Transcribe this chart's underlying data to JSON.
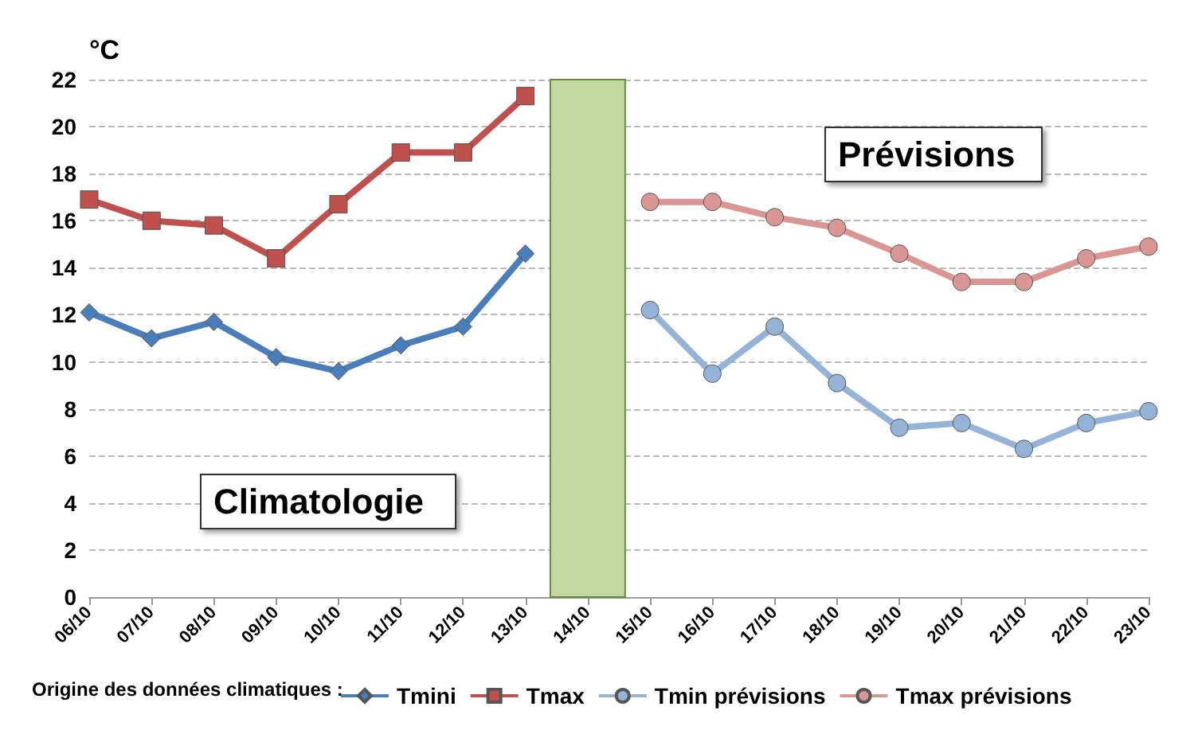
{
  "chart_data": {
    "type": "line",
    "ylabel": "°C",
    "categories": [
      "06/10",
      "07/10",
      "08/10",
      "09/10",
      "10/10",
      "11/10",
      "12/10",
      "13/10",
      "14/10",
      "15/10",
      "16/10",
      "17/10",
      "18/10",
      "19/10",
      "20/10",
      "21/10",
      "22/10",
      "23/10"
    ],
    "series": [
      {
        "name": "Tmini",
        "color": "#4a7ebb",
        "marker": "diamond",
        "values": [
          12.1,
          11.0,
          11.7,
          10.2,
          9.6,
          10.7,
          11.5,
          14.6,
          null,
          null,
          null,
          null,
          null,
          null,
          null,
          null,
          null,
          null
        ]
      },
      {
        "name": "Tmax",
        "color": "#c0504d",
        "marker": "square",
        "values": [
          16.9,
          16.0,
          15.8,
          14.4,
          16.7,
          18.9,
          18.9,
          21.3,
          null,
          null,
          null,
          null,
          null,
          null,
          null,
          null,
          null,
          null
        ]
      },
      {
        "name": "Tmin prévisions",
        "color": "#95b3d7",
        "marker": "circle",
        "values": [
          null,
          null,
          null,
          null,
          null,
          null,
          null,
          null,
          null,
          12.2,
          9.5,
          11.5,
          9.1,
          7.2,
          7.4,
          6.3,
          7.4,
          7.9
        ]
      },
      {
        "name": "Tmax prévisions",
        "color": "#d99694",
        "marker": "circle",
        "values": [
          null,
          null,
          null,
          null,
          null,
          null,
          null,
          null,
          null,
          16.8,
          16.8,
          16.15,
          15.7,
          14.6,
          13.4,
          13.4,
          14.4,
          14.9
        ]
      }
    ],
    "bands": [
      {
        "axis": "x",
        "from": "14/10",
        "to": "14/10",
        "color": "#c4d9a0"
      }
    ],
    "ylim": [
      0,
      22
    ],
    "yticks": [
      0,
      2,
      4,
      6,
      8,
      10,
      12,
      14,
      16,
      18,
      20,
      22
    ],
    "grid": "y",
    "legend": "bottom",
    "annotations": [
      "Climatologie",
      "Prévisions",
      "Origine des données climatiques :"
    ]
  }
}
